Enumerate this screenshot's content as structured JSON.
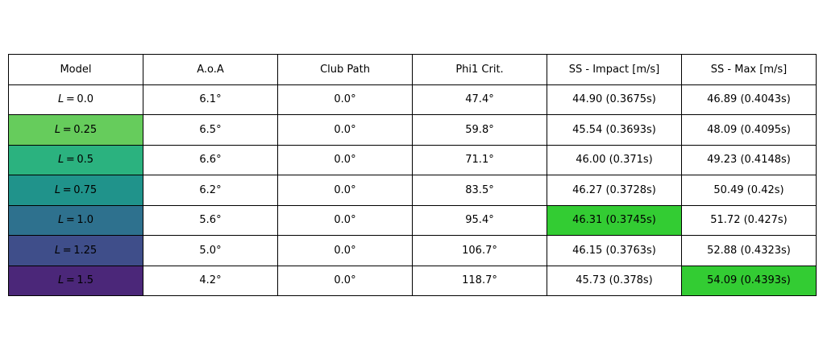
{
  "chart_data": {
    "type": "table",
    "columns": [
      "Model",
      "A.o.A",
      "Club Path",
      "Phi1 Crit.",
      "SS - Impact [m/s]",
      "SS - Max [m/s]"
    ],
    "rows": [
      {
        "model_var": "L",
        "model_val": "0.0",
        "cells": [
          "6.1°",
          "0.0°",
          "47.4°",
          "44.90 (0.3675s)",
          "46.89 (0.4043s)"
        ]
      },
      {
        "model_var": "L",
        "model_val": "0.25",
        "cells": [
          "6.5°",
          "0.0°",
          "59.8°",
          "45.54 (0.3693s)",
          "48.09 (0.4095s)"
        ]
      },
      {
        "model_var": "L",
        "model_val": "0.5",
        "cells": [
          "6.6°",
          "0.0°",
          "71.1°",
          "46.00 (0.371s)",
          "49.23 (0.4148s)"
        ]
      },
      {
        "model_var": "L",
        "model_val": "0.75",
        "cells": [
          "6.2°",
          "0.0°",
          "83.5°",
          "46.27 (0.3728s)",
          "50.49 (0.42s)"
        ]
      },
      {
        "model_var": "L",
        "model_val": "1.0",
        "cells": [
          "5.6°",
          "0.0°",
          "95.4°",
          "46.31 (0.3745s)",
          "51.72 (0.427s)"
        ]
      },
      {
        "model_var": "L",
        "model_val": "1.25",
        "cells": [
          "5.0°",
          "0.0°",
          "106.7°",
          "46.15 (0.3763s)",
          "52.88 (0.4323s)"
        ]
      },
      {
        "model_var": "L",
        "model_val": "1.5",
        "cells": [
          "4.2°",
          "0.0°",
          "118.7°",
          "45.73 (0.378s)",
          "54.09 (0.4393s)"
        ]
      }
    ],
    "row_colors": [
      "#ffffff",
      "#66cc5c",
      "#2bb27f",
      "#20938b",
      "#2e718e",
      "#3f4e8a",
      "#4b2779"
    ],
    "highlight_color": "#33cc33",
    "highlights": [
      {
        "row": 4,
        "col": 4
      },
      {
        "row": 6,
        "col": 5
      }
    ]
  }
}
